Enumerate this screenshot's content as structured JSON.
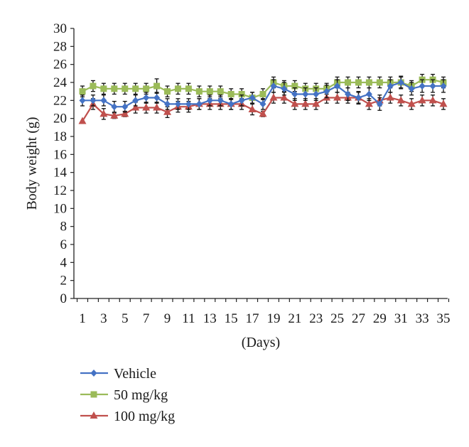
{
  "chart_data": {
    "type": "line",
    "xlabel": "(Days)",
    "ylabel": "Body weight (g)",
    "ylim": [
      0,
      30
    ],
    "yticks": [
      0,
      2,
      4,
      6,
      8,
      10,
      12,
      14,
      16,
      18,
      20,
      22,
      24,
      26,
      28,
      30
    ],
    "xlim": [
      1,
      35
    ],
    "xticks": [
      1,
      3,
      5,
      7,
      9,
      11,
      13,
      15,
      17,
      19,
      21,
      23,
      25,
      27,
      29,
      31,
      33,
      35
    ],
    "grid": false,
    "legend_position": "bottom-left",
    "x": [
      1,
      2,
      3,
      4,
      5,
      6,
      7,
      8,
      9,
      10,
      11,
      12,
      13,
      14,
      15,
      16,
      17,
      18,
      19,
      20,
      21,
      22,
      23,
      24,
      25,
      26,
      27,
      28,
      29,
      30,
      31,
      32,
      33,
      34,
      35
    ],
    "series": [
      {
        "name": "Vehicle",
        "color": "#4472C4",
        "marker": "diamond",
        "values": [
          22.0,
          22.0,
          22.0,
          21.3,
          21.3,
          22.0,
          22.3,
          22.3,
          21.6,
          21.6,
          21.6,
          21.6,
          22.0,
          22.0,
          21.6,
          22.0,
          22.3,
          21.6,
          23.6,
          23.3,
          22.7,
          22.7,
          22.7,
          23.0,
          23.6,
          22.7,
          22.3,
          22.7,
          21.6,
          23.6,
          24.0,
          23.3,
          23.6,
          23.6,
          23.6
        ],
        "errors": [
          0.6,
          0.6,
          0.6,
          0.6,
          0.6,
          0.6,
          0.6,
          0.6,
          0.6,
          0.6,
          0.6,
          0.6,
          0.6,
          0.6,
          0.6,
          0.6,
          0.6,
          0.6,
          0.7,
          0.7,
          0.7,
          0.7,
          0.7,
          0.7,
          0.7,
          0.7,
          0.7,
          0.7,
          0.7,
          0.7,
          0.7,
          0.7,
          0.7,
          0.7,
          0.7
        ]
      },
      {
        "name": "50 mg/kg",
        "color": "#9BBB59",
        "marker": "square",
        "values": [
          23.0,
          23.6,
          23.3,
          23.3,
          23.3,
          23.3,
          23.3,
          23.6,
          23.0,
          23.3,
          23.3,
          23.0,
          23.0,
          23.0,
          22.7,
          22.7,
          22.3,
          22.7,
          24.0,
          23.6,
          23.6,
          23.3,
          23.3,
          23.3,
          24.0,
          24.0,
          24.0,
          24.0,
          24.0,
          24.0,
          24.0,
          23.6,
          24.3,
          24.3,
          24.0
        ],
        "errors": [
          0.6,
          0.6,
          0.6,
          0.6,
          0.6,
          0.6,
          0.6,
          0.8,
          0.6,
          0.6,
          0.6,
          0.6,
          0.6,
          0.6,
          0.6,
          0.6,
          0.6,
          0.6,
          0.6,
          0.6,
          0.6,
          0.6,
          0.6,
          0.6,
          0.6,
          0.6,
          0.6,
          0.6,
          0.6,
          0.6,
          0.6,
          0.6,
          0.6,
          0.6,
          0.6
        ]
      },
      {
        "name": "100 mg/kg",
        "color": "#C0504D",
        "marker": "triangle",
        "values": [
          19.7,
          21.6,
          20.5,
          20.3,
          20.5,
          21.2,
          21.2,
          21.2,
          20.7,
          21.3,
          21.3,
          21.6,
          21.6,
          21.6,
          21.6,
          21.6,
          21.0,
          20.5,
          22.3,
          22.3,
          21.6,
          21.6,
          21.6,
          22.3,
          22.3,
          22.3,
          22.3,
          21.6,
          22.0,
          22.3,
          22.0,
          21.6,
          22.0,
          22.0,
          21.6
        ],
        "errors": [
          0.0,
          0.6,
          0.6,
          0.3,
          0.3,
          0.6,
          0.6,
          0.6,
          0.6,
          0.6,
          0.6,
          0.6,
          0.6,
          0.6,
          0.6,
          0.6,
          0.6,
          0.3,
          0.6,
          0.6,
          0.6,
          0.6,
          0.6,
          0.6,
          0.6,
          0.6,
          0.6,
          0.6,
          0.6,
          0.6,
          0.6,
          0.6,
          0.6,
          0.6,
          0.6
        ]
      }
    ]
  }
}
